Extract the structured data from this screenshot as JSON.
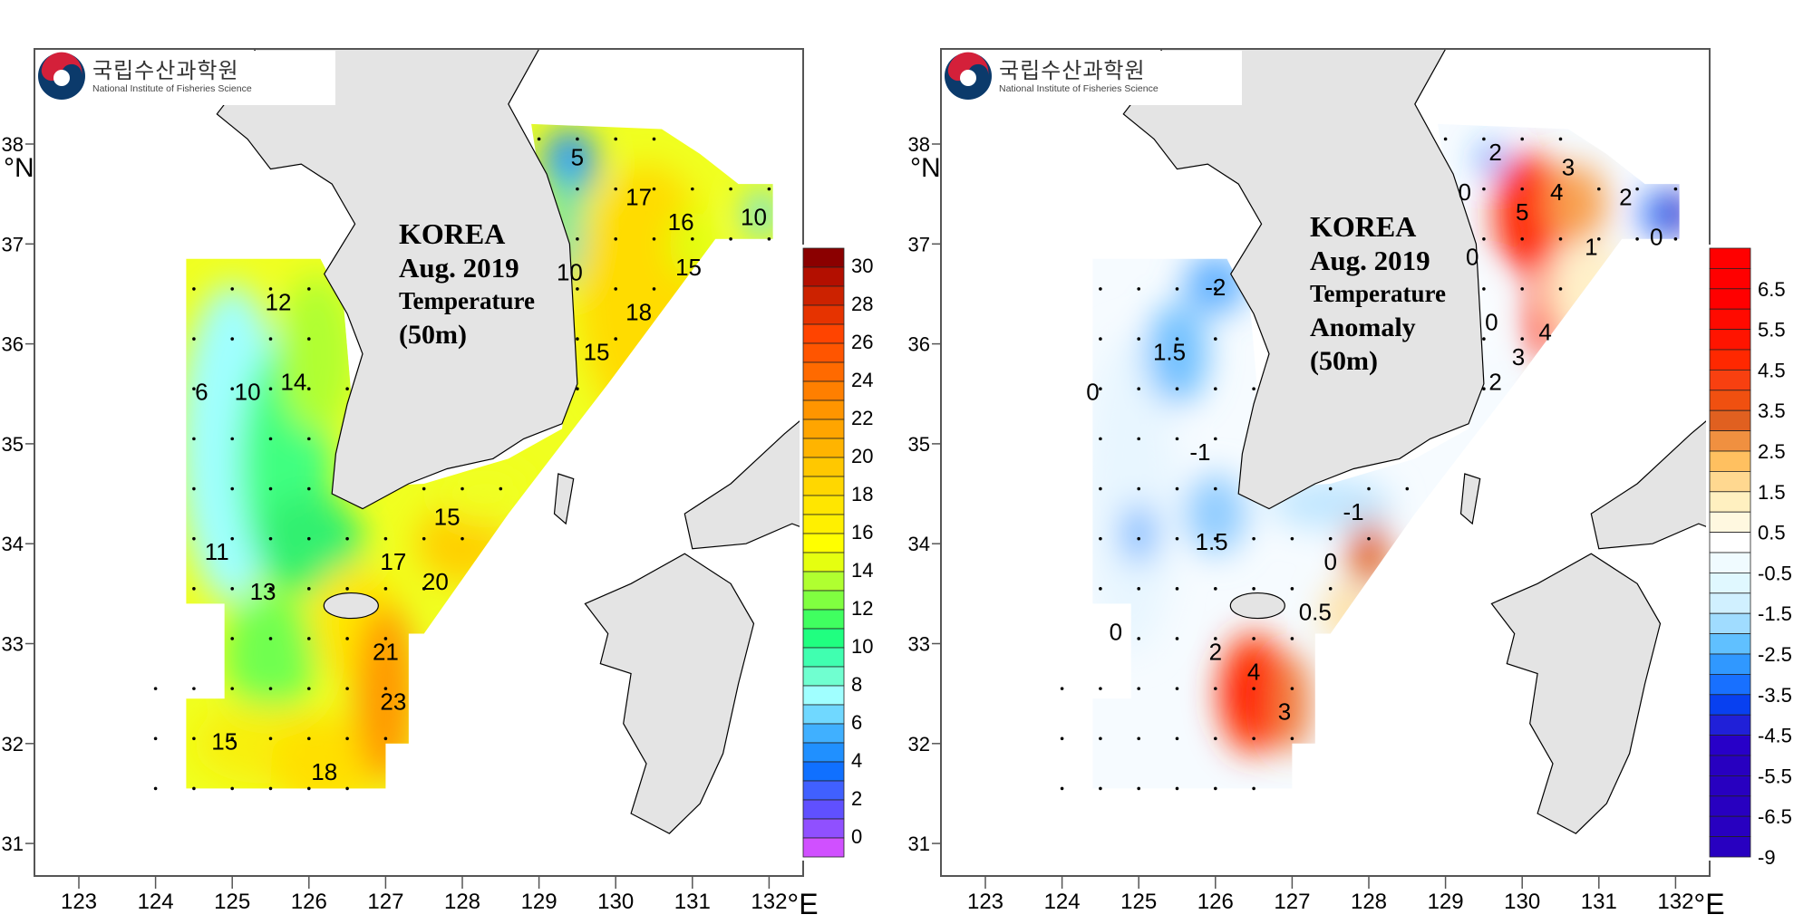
{
  "logo": {
    "korean": "국립수산과학원",
    "english": "National Institute of Fisheries Science"
  },
  "axes": {
    "lon_ticks": [
      "123",
      "124",
      "125",
      "126",
      "127",
      "128",
      "129",
      "130",
      "131",
      "132"
    ],
    "lat_ticks": [
      "31",
      "32",
      "33",
      "34",
      "35",
      "36",
      "37",
      "38"
    ],
    "lon_unit": "°E",
    "lat_unit": "°N",
    "lon_range": [
      122.4,
      133.0
    ],
    "lat_range": [
      30.67,
      38.95
    ]
  },
  "panels": [
    {
      "title": [
        "KOREA",
        "Aug. 2019",
        "Temperature",
        "(50m)"
      ],
      "colorbar": {
        "labels": [
          "30",
          "28",
          "26",
          "24",
          "22",
          "20",
          "18",
          "16",
          "14",
          "12",
          "10",
          "8",
          "6",
          "4",
          "2",
          "0"
        ],
        "colors": [
          "#8b0000",
          "#b30f00",
          "#cc2200",
          "#e63300",
          "#ff4400",
          "#ff5500",
          "#ff6a00",
          "#ff7f00",
          "#ff9500",
          "#ffa500",
          "#ffb400",
          "#ffc800",
          "#ffd700",
          "#ffe600",
          "#fff000",
          "#ffff00",
          "#e5ff10",
          "#b0ff30",
          "#80ff40",
          "#40ff60",
          "#20ff80",
          "#40ffb0",
          "#70ffd0",
          "#a0ffff",
          "#70d8ff",
          "#40b0ff",
          "#2090ff",
          "#1070ff",
          "#4060ff",
          "#6050ff",
          "#9050ff",
          "#d050ff"
        ]
      },
      "contour_labels": [
        {
          "text": "5",
          "lon": 129.5,
          "lat": 37.85
        },
        {
          "text": "17",
          "lon": 130.3,
          "lat": 37.45
        },
        {
          "text": "16",
          "lon": 130.85,
          "lat": 37.2
        },
        {
          "text": "10",
          "lon": 131.8,
          "lat": 37.25
        },
        {
          "text": "15",
          "lon": 130.95,
          "lat": 36.75
        },
        {
          "text": "10",
          "lon": 129.4,
          "lat": 36.7
        },
        {
          "text": "18",
          "lon": 130.3,
          "lat": 36.3
        },
        {
          "text": "15",
          "lon": 129.75,
          "lat": 35.9
        },
        {
          "text": "12",
          "lon": 125.6,
          "lat": 36.4
        },
        {
          "text": "6",
          "lon": 124.6,
          "lat": 35.5
        },
        {
          "text": "10",
          "lon": 125.2,
          "lat": 35.5
        },
        {
          "text": "14",
          "lon": 125.8,
          "lat": 35.6
        },
        {
          "text": "15",
          "lon": 127.8,
          "lat": 34.25
        },
        {
          "text": "11",
          "lon": 124.8,
          "lat": 33.9
        },
        {
          "text": "13",
          "lon": 125.4,
          "lat": 33.5
        },
        {
          "text": "17",
          "lon": 127.1,
          "lat": 33.8
        },
        {
          "text": "20",
          "lon": 127.65,
          "lat": 33.6
        },
        {
          "text": "21",
          "lon": 127.0,
          "lat": 32.9
        },
        {
          "text": "23",
          "lon": 127.1,
          "lat": 32.4
        },
        {
          "text": "15",
          "lon": 124.9,
          "lat": 32.0
        },
        {
          "text": "18",
          "lon": 126.2,
          "lat": 31.7
        }
      ]
    },
    {
      "title": [
        "KOREA",
        "Aug. 2019",
        "Temperature",
        "Anomaly",
        "(50m)"
      ],
      "colorbar": {
        "labels": [
          "6.5",
          "5.5",
          "4.5",
          "3.5",
          "2.5",
          "1.5",
          "0.5",
          "-0.5",
          "-1.5",
          "-2.5",
          "-3.5",
          "-4.5",
          "-5.5",
          "-6.5",
          "-9"
        ],
        "colors": [
          "#ff0000",
          "#ff0000",
          "#ff0000",
          "#ff0a00",
          "#ff1400",
          "#ff2800",
          "#f84010",
          "#f05010",
          "#e06020",
          "#f09040",
          "#ffc060",
          "#ffd890",
          "#fff0c0",
          "#fff8e0",
          "#ffffff",
          "#f0fbff",
          "#e0f8ff",
          "#d0f0ff",
          "#a0dcff",
          "#60c0ff",
          "#3098ff",
          "#1870ff",
          "#0840f0",
          "#2020d8",
          "#2800c8",
          "#2800c0",
          "#2800c0",
          "#2800c0",
          "#2800c0",
          "#2800c0"
        ]
      },
      "contour_labels": [
        {
          "text": "2",
          "lon": 129.65,
          "lat": 37.9
        },
        {
          "text": "0",
          "lon": 129.25,
          "lat": 37.5
        },
        {
          "text": "5",
          "lon": 130.0,
          "lat": 37.3
        },
        {
          "text": "4",
          "lon": 130.45,
          "lat": 37.5
        },
        {
          "text": "3",
          "lon": 130.6,
          "lat": 37.75
        },
        {
          "text": "2",
          "lon": 131.35,
          "lat": 37.45
        },
        {
          "text": "0",
          "lon": 131.75,
          "lat": 37.05
        },
        {
          "text": "1",
          "lon": 130.9,
          "lat": 36.95
        },
        {
          "text": "0",
          "lon": 129.35,
          "lat": 36.85
        },
        {
          "text": "0",
          "lon": 129.6,
          "lat": 36.2
        },
        {
          "text": "4",
          "lon": 130.3,
          "lat": 36.1
        },
        {
          "text": "3",
          "lon": 129.95,
          "lat": 35.85
        },
        {
          "text": "2",
          "lon": 129.65,
          "lat": 35.6
        },
        {
          "text": "-2",
          "lon": 126.0,
          "lat": 36.55
        },
        {
          "text": "1.5",
          "lon": 125.4,
          "lat": 35.9
        },
        {
          "text": "0",
          "lon": 124.4,
          "lat": 35.5
        },
        {
          "text": "-1",
          "lon": 125.8,
          "lat": 34.9
        },
        {
          "text": "1.5",
          "lon": 125.95,
          "lat": 34.0
        },
        {
          "text": "-1",
          "lon": 127.8,
          "lat": 34.3
        },
        {
          "text": "0",
          "lon": 127.5,
          "lat": 33.8
        },
        {
          "text": "0.5",
          "lon": 127.3,
          "lat": 33.3
        },
        {
          "text": "0",
          "lon": 124.7,
          "lat": 33.1
        },
        {
          "text": "2",
          "lon": 126.0,
          "lat": 32.9
        },
        {
          "text": "4",
          "lon": 126.5,
          "lat": 32.7
        },
        {
          "text": "3",
          "lon": 126.9,
          "lat": 32.3
        }
      ]
    }
  ]
}
